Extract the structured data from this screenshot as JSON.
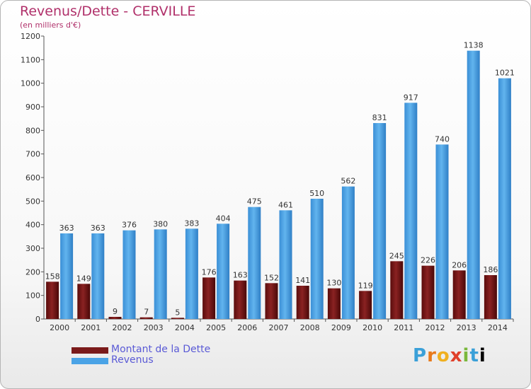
{
  "header": {
    "title": "Revenus/Dette - CERVILLE",
    "subtitle": "(en milliers d'€)"
  },
  "legend": [
    {
      "label": "Montant de la Dette",
      "color": "#7a1a1a"
    },
    {
      "label": "Revenus",
      "color": "#4aa3e6"
    }
  ],
  "logo": {
    "text": "Proxiti"
  },
  "chart_data": {
    "type": "bar",
    "categories": [
      "2000",
      "2001",
      "2002",
      "2003",
      "2004",
      "2005",
      "2006",
      "2007",
      "2008",
      "2009",
      "2010",
      "2011",
      "2012",
      "2013",
      "2014"
    ],
    "series": [
      {
        "name": "Montant de la Dette",
        "values": [
          158,
          149,
          9,
          7,
          5,
          176,
          163,
          152,
          141,
          130,
          119,
          245,
          226,
          206,
          186
        ]
      },
      {
        "name": "Revenus",
        "values": [
          363,
          363,
          376,
          380,
          383,
          404,
          475,
          461,
          510,
          562,
          831,
          917,
          740,
          1138,
          1021
        ]
      }
    ],
    "ylim": [
      0,
      1200
    ],
    "yticks": [
      0,
      100,
      200,
      300,
      400,
      500,
      600,
      700,
      800,
      900,
      1000,
      1100,
      1200
    ],
    "grid": false,
    "legend_position": "bottom-left"
  }
}
